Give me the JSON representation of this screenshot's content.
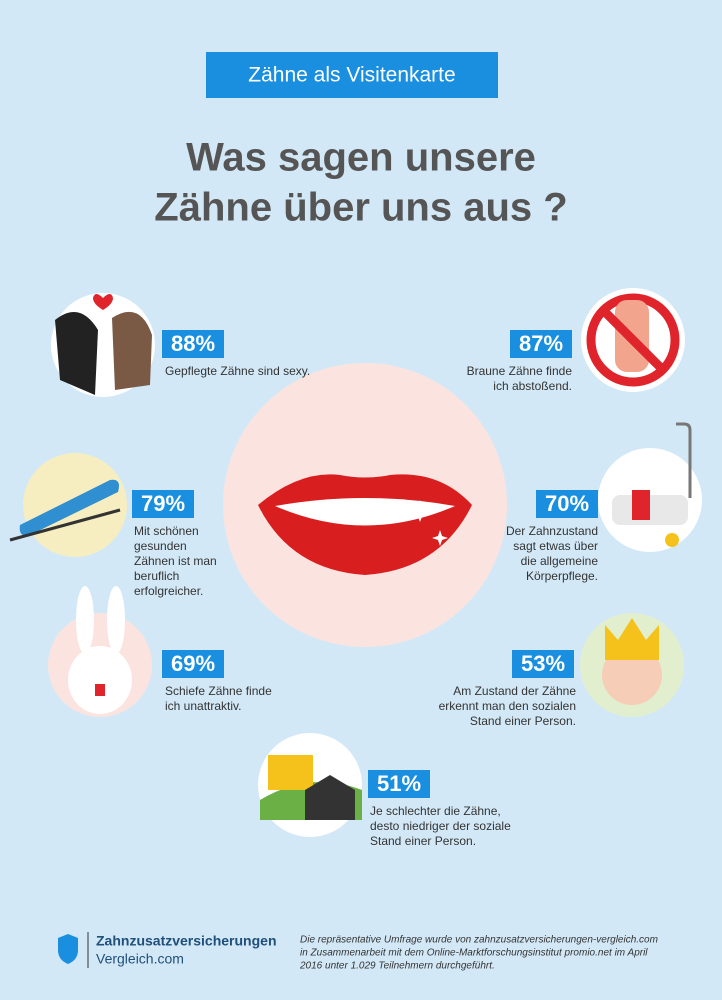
{
  "header": {
    "label": "Zähne als Visitenkarte",
    "title": [
      "Was sagen unsere",
      "Zähne über uns aus ?"
    ]
  },
  "items": [
    {
      "percent": "88%",
      "text": [
        "Gepflegte Zähne sind sexy."
      ]
    },
    {
      "percent": "87%",
      "text": [
        "Braune Zähne finde",
        "ich abstoßend."
      ]
    },
    {
      "percent": "79%",
      "text": [
        "Mit schönen",
        "gesunden",
        "Zähnen ist man",
        "beruflich",
        "erfolgreicher."
      ]
    },
    {
      "percent": "70%",
      "text": [
        "Der Zahnzustand",
        "sagt etwas über",
        "die allgemeine",
        "Körperpflege."
      ]
    },
    {
      "percent": "69%",
      "text": [
        "Schiefe Zähne finde",
        "ich unattraktiv."
      ]
    },
    {
      "percent": "53%",
      "text": [
        "Am Zustand der Zähne",
        "erkennt man den sozialen",
        "Stand einer Person."
      ]
    },
    {
      "percent": "51%",
      "text": [
        "Je schlechter die Zähne,",
        "desto niedriger der soziale",
        "Stand einer Person."
      ]
    }
  ],
  "footer": {
    "brand": [
      "Zahnzusatzversicherungen",
      "Vergleich.com"
    ],
    "disclaimer": [
      "Die repräsentative Umfrage wurde von zahnzusatzversicherungen-vergleich.com",
      "in Zusammenarbeit mit dem Online-Marktforschungsinstitut promio.net im April",
      "2016 unter 1.029 Teilnehmern durchgeführt."
    ]
  }
}
